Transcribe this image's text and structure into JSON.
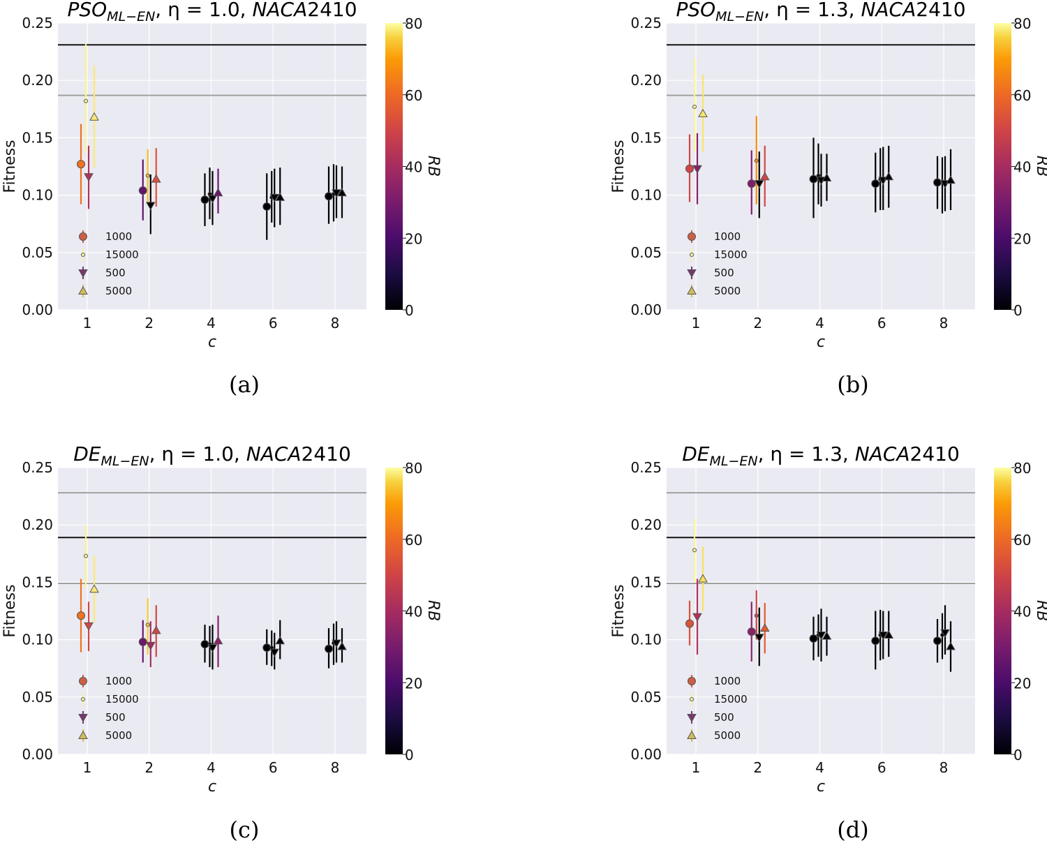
{
  "chart_data": [
    {
      "type": "scatter",
      "caption": "(a)",
      "title": {
        "algo": "PSO",
        "sub": "ML−EN",
        "rest": ", η = 1.0, ",
        "airfoil": "NACA",
        "num": "2410"
      },
      "xlabel": "c",
      "ylabel": "Fitness",
      "categories": [
        "1",
        "2",
        "4",
        "6",
        "8"
      ],
      "ylim": [
        0,
        0.25
      ],
      "yticks": [
        "0.00",
        "0.05",
        "0.10",
        "0.15",
        "0.20",
        "0.25"
      ],
      "hlines": [
        {
          "y": 0.231,
          "color": "#111111"
        },
        {
          "y": 0.187,
          "color": "#a0a0a0"
        }
      ],
      "colorbar": {
        "label": "RB",
        "range": [
          0,
          80
        ],
        "ticks": [
          "0",
          "20",
          "40",
          "60",
          "80"
        ]
      },
      "legend_labels": [
        "1000",
        "15000",
        "500",
        "5000"
      ],
      "series": [
        {
          "name": "1000",
          "values": [
            0.127,
            0.104,
            0.096,
            0.09,
            0.099
          ],
          "err_low": [
            0.092,
            0.078,
            0.073,
            0.061,
            0.075
          ],
          "err_high": [
            0.162,
            0.131,
            0.119,
            0.119,
            0.125
          ],
          "rb": [
            55,
            22,
            0,
            0,
            0
          ]
        },
        {
          "name": "15000",
          "values": [
            0.182,
            0.117,
            0.101,
            0.098,
            0.101
          ],
          "err_low": [
            0.137,
            0.094,
            0.079,
            0.076,
            0.077
          ],
          "err_high": [
            0.232,
            0.14,
            0.124,
            0.121,
            0.127
          ],
          "rb": [
            78,
            68,
            0,
            0,
            0
          ]
        },
        {
          "name": "500",
          "values": [
            0.116,
            0.091,
            0.097,
            0.098,
            0.102
          ],
          "err_low": [
            0.088,
            0.066,
            0.074,
            0.072,
            0.08
          ],
          "err_high": [
            0.143,
            0.118,
            0.121,
            0.123,
            0.126
          ],
          "rb": [
            38,
            0,
            0,
            0,
            0
          ]
        },
        {
          "name": "5000",
          "values": [
            0.168,
            0.114,
            0.102,
            0.098,
            0.102
          ],
          "err_low": [
            0.124,
            0.09,
            0.084,
            0.074,
            0.08
          ],
          "err_high": [
            0.213,
            0.141,
            0.123,
            0.124,
            0.125
          ],
          "rb": [
            76,
            48,
            24,
            0,
            0
          ]
        }
      ]
    },
    {
      "type": "scatter",
      "caption": "(b)",
      "title": {
        "algo": "PSO",
        "sub": "ML−EN",
        "rest": ", η = 1.3, ",
        "airfoil": "NACA",
        "num": "2410"
      },
      "xlabel": "c",
      "ylabel": "Fitness",
      "categories": [
        "1",
        "2",
        "4",
        "6",
        "8"
      ],
      "ylim": [
        0,
        0.25
      ],
      "yticks": [
        "0.00",
        "0.05",
        "0.10",
        "0.15",
        "0.20",
        "0.25"
      ],
      "hlines": [
        {
          "y": 0.231,
          "color": "#111111"
        },
        {
          "y": 0.187,
          "color": "#a0a0a0"
        }
      ],
      "colorbar": {
        "label": "RB",
        "range": [
          0,
          80
        ],
        "ticks": [
          "0",
          "20",
          "40",
          "60",
          "80"
        ]
      },
      "legend_labels": [
        "1000",
        "15000",
        "500",
        "5000"
      ],
      "series": [
        {
          "name": "1000",
          "values": [
            0.123,
            0.11,
            0.114,
            0.11,
            0.111
          ],
          "err_low": [
            0.094,
            0.083,
            0.08,
            0.085,
            0.088
          ],
          "err_high": [
            0.153,
            0.139,
            0.15,
            0.137,
            0.134
          ],
          "rb": [
            45,
            28,
            0,
            0,
            0
          ]
        },
        {
          "name": "15000",
          "values": [
            0.177,
            0.13,
            0.117,
            0.114,
            0.112
          ],
          "err_low": [
            0.138,
            0.092,
            0.092,
            0.087,
            0.084
          ],
          "err_high": [
            0.219,
            0.169,
            0.145,
            0.141,
            0.133
          ],
          "rb": [
            78,
            60,
            0,
            0,
            0
          ]
        },
        {
          "name": "500",
          "values": [
            0.123,
            0.11,
            0.113,
            0.113,
            0.11
          ],
          "err_low": [
            0.092,
            0.08,
            0.09,
            0.087,
            0.086
          ],
          "err_high": [
            0.154,
            0.138,
            0.136,
            0.142,
            0.134
          ],
          "rb": [
            30,
            0,
            0,
            0,
            0
          ]
        },
        {
          "name": "5000",
          "values": [
            0.171,
            0.116,
            0.115,
            0.116,
            0.113
          ],
          "err_low": [
            0.138,
            0.09,
            0.095,
            0.089,
            0.087
          ],
          "err_high": [
            0.205,
            0.143,
            0.136,
            0.143,
            0.14
          ],
          "rb": [
            75,
            45,
            0,
            0,
            0
          ]
        }
      ]
    },
    {
      "type": "scatter",
      "caption": "(c)",
      "title": {
        "algo": "DE",
        "sub": "ML−EN",
        "rest": ", η = 1.0, ",
        "airfoil": "NACA",
        "num": "2410"
      },
      "xlabel": "c",
      "ylabel": "Fitness",
      "categories": [
        "1",
        "2",
        "4",
        "6",
        "8"
      ],
      "ylim": [
        0,
        0.25
      ],
      "yticks": [
        "0.00",
        "0.05",
        "0.10",
        "0.15",
        "0.20",
        "0.25"
      ],
      "hlines": [
        {
          "y": 0.228,
          "color": "#a0a0a0"
        },
        {
          "y": 0.189,
          "color": "#111111"
        },
        {
          "y": 0.149,
          "color": "#a0a0a0"
        }
      ],
      "colorbar": {
        "label": "RB",
        "range": [
          0,
          80
        ],
        "ticks": [
          "0",
          "20",
          "40",
          "60",
          "80"
        ]
      },
      "legend_labels": [
        "1000",
        "15000",
        "500",
        "5000"
      ],
      "series": [
        {
          "name": "1000",
          "values": [
            0.121,
            0.098,
            0.096,
            0.093,
            0.092
          ],
          "err_low": [
            0.089,
            0.08,
            0.08,
            0.078,
            0.075
          ],
          "err_high": [
            0.153,
            0.117,
            0.113,
            0.109,
            0.11
          ],
          "rb": [
            55,
            24,
            0,
            0,
            0
          ]
        },
        {
          "name": "15000",
          "values": [
            0.173,
            0.113,
            0.096,
            0.093,
            0.097
          ],
          "err_low": [
            0.145,
            0.087,
            0.076,
            0.077,
            0.078
          ],
          "err_high": [
            0.2,
            0.136,
            0.112,
            0.108,
            0.114
          ],
          "rb": [
            78,
            70,
            0,
            0,
            0
          ]
        },
        {
          "name": "500",
          "values": [
            0.112,
            0.095,
            0.093,
            0.089,
            0.097
          ],
          "err_low": [
            0.09,
            0.076,
            0.074,
            0.074,
            0.08
          ],
          "err_high": [
            0.133,
            0.116,
            0.113,
            0.106,
            0.116
          ],
          "rb": [
            45,
            35,
            0,
            0,
            0
          ]
        },
        {
          "name": "5000",
          "values": [
            0.144,
            0.108,
            0.099,
            0.099,
            0.094
          ],
          "err_low": [
            0.115,
            0.085,
            0.076,
            0.083,
            0.08
          ],
          "err_high": [
            0.173,
            0.13,
            0.121,
            0.117,
            0.11
          ],
          "rb": [
            76,
            45,
            30,
            0,
            0
          ]
        }
      ]
    },
    {
      "type": "scatter",
      "caption": "(d)",
      "title": {
        "algo": "DE",
        "sub": "ML−EN",
        "rest": ", η = 1.3, ",
        "airfoil": "NACA",
        "num": "2410"
      },
      "xlabel": "c",
      "ylabel": "Fitness",
      "categories": [
        "1",
        "2",
        "4",
        "6",
        "8"
      ],
      "ylim": [
        0,
        0.25
      ],
      "yticks": [
        "0.00",
        "0.05",
        "0.10",
        "0.15",
        "0.20",
        "0.25"
      ],
      "hlines": [
        {
          "y": 0.228,
          "color": "#a0a0a0"
        },
        {
          "y": 0.189,
          "color": "#111111"
        },
        {
          "y": 0.149,
          "color": "#a0a0a0"
        }
      ],
      "colorbar": {
        "label": "RB",
        "range": [
          0,
          80
        ],
        "ticks": [
          "0",
          "20",
          "40",
          "60",
          "80"
        ]
      },
      "legend_labels": [
        "1000",
        "15000",
        "500",
        "5000"
      ],
      "series": [
        {
          "name": "1000",
          "values": [
            0.114,
            0.107,
            0.101,
            0.099,
            0.099
          ],
          "err_low": [
            0.095,
            0.081,
            0.082,
            0.074,
            0.08
          ],
          "err_high": [
            0.134,
            0.133,
            0.12,
            0.125,
            0.118
          ],
          "rb": [
            48,
            30,
            0,
            0,
            0
          ]
        },
        {
          "name": "15000",
          "values": [
            0.178,
            0.121,
            0.104,
            0.104,
            0.104
          ],
          "err_low": [
            0.15,
            0.1,
            0.085,
            0.082,
            0.083
          ],
          "err_high": [
            0.205,
            0.143,
            0.122,
            0.126,
            0.123
          ],
          "rb": [
            78,
            45,
            0,
            0,
            0
          ]
        },
        {
          "name": "500",
          "values": [
            0.12,
            0.102,
            0.104,
            0.104,
            0.106
          ],
          "err_low": [
            0.087,
            0.077,
            0.081,
            0.083,
            0.087
          ],
          "err_high": [
            0.153,
            0.128,
            0.127,
            0.125,
            0.13
          ],
          "rb": [
            38,
            0,
            0,
            0,
            0
          ]
        },
        {
          "name": "5000",
          "values": [
            0.153,
            0.11,
            0.103,
            0.104,
            0.094
          ],
          "err_low": [
            0.125,
            0.088,
            0.086,
            0.085,
            0.072
          ],
          "err_high": [
            0.181,
            0.132,
            0.12,
            0.125,
            0.116
          ],
          "rb": [
            74,
            50,
            0,
            0,
            0
          ]
        }
      ]
    }
  ]
}
